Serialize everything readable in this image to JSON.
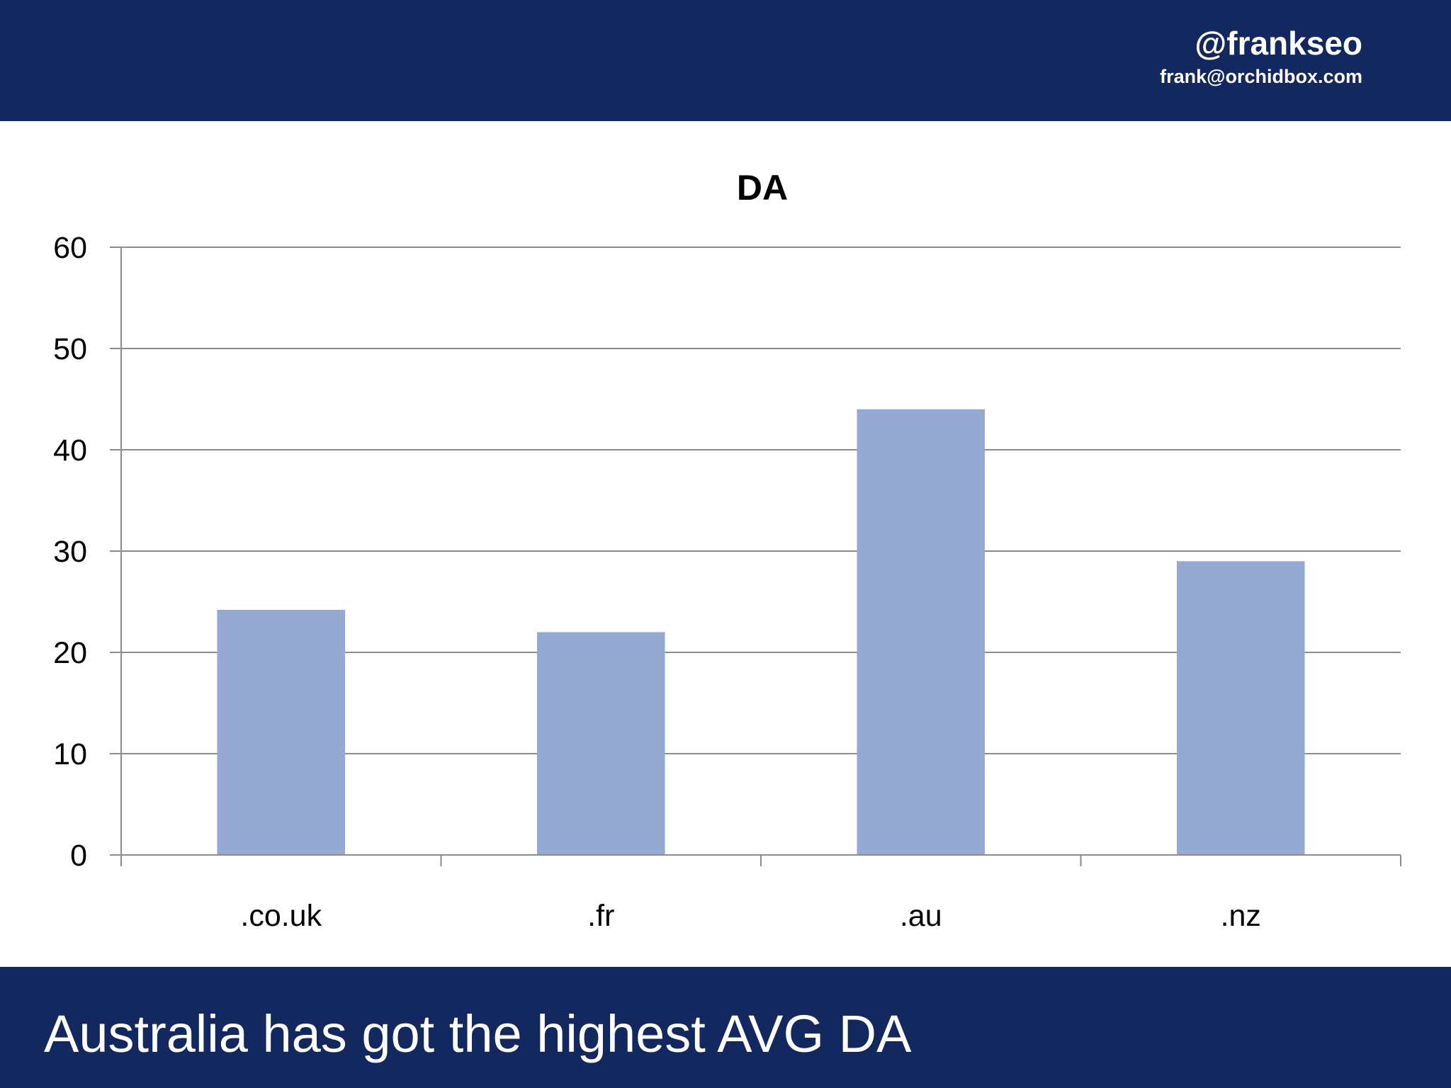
{
  "header": {
    "handle": "@frankseo",
    "email": "frank@orchidbox.com"
  },
  "footer": {
    "caption": "Australia has got the highest AVG DA"
  },
  "colors": {
    "banner": "#13285e",
    "bar": "#95a9d2",
    "grid": "#8c8c8c"
  },
  "chart_data": {
    "type": "bar",
    "title": "DA",
    "categories": [
      ".co.uk",
      ".fr",
      ".au",
      ".nz"
    ],
    "values": [
      24.2,
      22,
      44,
      29
    ],
    "ylim": [
      0,
      60
    ],
    "yticks": [
      0,
      10,
      20,
      30,
      40,
      50,
      60
    ],
    "grid": true,
    "legend": "none"
  }
}
